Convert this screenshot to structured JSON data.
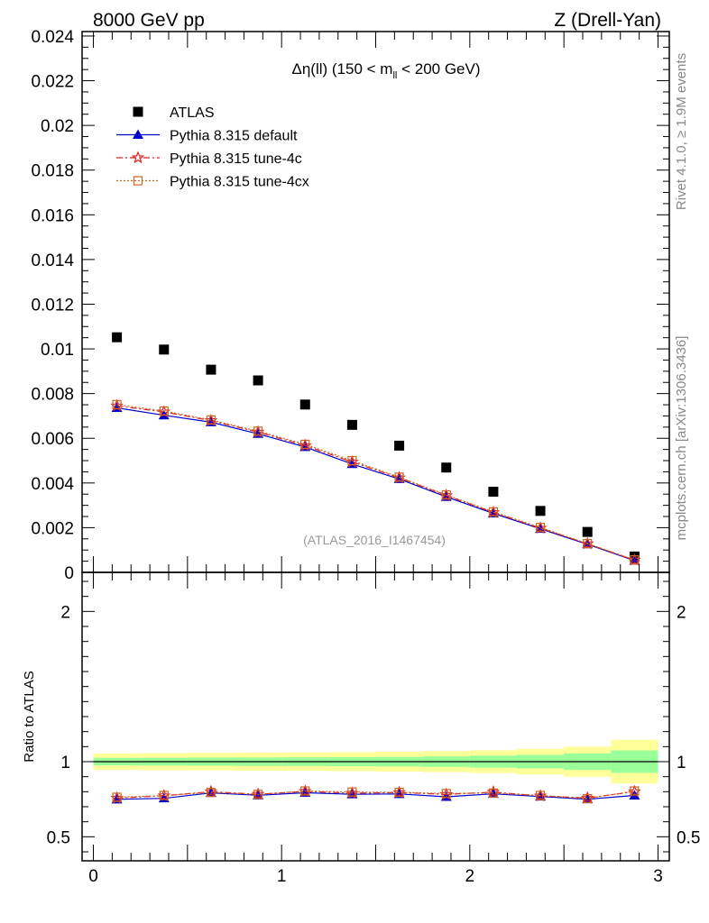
{
  "header": {
    "energy": "8000 GeV pp",
    "process": "Z (Drell-Yan)",
    "plot_title_prefix": "Δη(ll) (150 < m",
    "plot_title_sub": "ll",
    "plot_title_suffix": " < 200 GeV)",
    "analysis_id": "(ATLAS_2016_I1467454)",
    "side_label_top": "Rivet 4.1.0, ≥ 1.9M events",
    "side_label_bottom": "mcplots.cern.ch [arXiv:1306.3436]"
  },
  "chart_data": [
    {
      "type": "scatter",
      "panel": "main",
      "title": "Δη(ll) (150 < m_ll < 200 GeV)",
      "xlim": [
        -0.06,
        3.06
      ],
      "ylim": [
        0,
        0.0242
      ],
      "yticks": [
        0.002,
        0.004,
        0.006,
        0.008,
        0.01,
        0.012,
        0.014,
        0.016,
        0.018,
        0.02,
        0.022,
        0.024
      ],
      "ytick_labels": [
        "0.002",
        "0.004",
        "0.006",
        "0.008",
        "0.01",
        "0.012",
        "0.014",
        "0.016",
        "0.018",
        "0.02",
        "0.022",
        "0.024"
      ],
      "y_zero_label": "0",
      "legend_position": "top-left",
      "x": [
        0.125,
        0.375,
        0.625,
        0.875,
        1.125,
        1.375,
        1.625,
        1.875,
        2.125,
        2.375,
        2.625,
        2.875
      ],
      "series": [
        {
          "name": "ATLAS",
          "color": "#000000",
          "marker": "square",
          "values": [
            0.01052,
            0.00997,
            0.00907,
            0.00859,
            0.00751,
            0.0066,
            0.00567,
            0.00469,
            0.00361,
            0.00275,
            0.00181,
            0.00071
          ]
        },
        {
          "name": "Pythia 8.315 default",
          "color": "#0000cc",
          "marker": "triangle",
          "line": "solid",
          "values": [
            0.00736,
            0.00703,
            0.00672,
            0.0062,
            0.00561,
            0.00485,
            0.00418,
            0.00338,
            0.00264,
            0.00195,
            0.00126,
            0.00053
          ]
        },
        {
          "name": "Pythia 8.315 tune-4c",
          "color": "#dd2222",
          "marker": "star",
          "line": "dashdot",
          "values": [
            0.00745,
            0.00718,
            0.00679,
            0.00628,
            0.00567,
            0.00494,
            0.00423,
            0.00344,
            0.00268,
            0.00198,
            0.00128,
            0.00055
          ]
        },
        {
          "name": "Pythia 8.315 tune-4cx",
          "color": "#cc6622",
          "marker": "open-square",
          "line": "dotted",
          "values": [
            0.00751,
            0.00722,
            0.00682,
            0.00632,
            0.00573,
            0.005,
            0.00426,
            0.00347,
            0.00271,
            0.00201,
            0.00129,
            0.00056
          ]
        }
      ]
    },
    {
      "type": "line",
      "panel": "ratio",
      "ylabel": "Ratio to ATLAS",
      "xlim": [
        -0.06,
        3.06
      ],
      "ylim": [
        0.34,
        2.26
      ],
      "yticks": [
        0.5,
        1,
        2
      ],
      "ytick_labels": [
        "0.5",
        "1",
        "2"
      ],
      "xticks": [
        0,
        1,
        2,
        3
      ],
      "xtick_labels": [
        "0",
        "1",
        "2",
        "3"
      ],
      "x_edges": [
        0,
        0.25,
        0.5,
        0.75,
        1,
        1.25,
        1.5,
        1.75,
        2,
        2.25,
        2.5,
        2.75,
        3
      ],
      "band_outer": [
        0.055,
        0.057,
        0.058,
        0.06,
        0.061,
        0.063,
        0.066,
        0.07,
        0.076,
        0.085,
        0.1,
        0.145
      ],
      "band_inner": [
        0.025,
        0.026,
        0.027,
        0.028,
        0.029,
        0.03,
        0.032,
        0.035,
        0.04,
        0.045,
        0.055,
        0.075
      ],
      "band_outer_color": "#ffff99",
      "band_inner_color": "#99ff99",
      "x": [
        0.125,
        0.375,
        0.625,
        0.875,
        1.125,
        1.375,
        1.625,
        1.875,
        2.125,
        2.375,
        2.625,
        2.875
      ],
      "series": [
        {
          "name": "Pythia 8.315 default",
          "color": "#0000cc",
          "values": [
            0.749,
            0.756,
            0.792,
            0.776,
            0.793,
            0.783,
            0.785,
            0.766,
            0.786,
            0.768,
            0.75,
            0.775
          ]
        },
        {
          "name": "Pythia 8.315 tune-4c",
          "color": "#dd2222",
          "values": [
            0.757,
            0.773,
            0.8,
            0.783,
            0.802,
            0.79,
            0.794,
            0.782,
            0.797,
            0.772,
            0.758,
            0.8
          ]
        },
        {
          "name": "Pythia 8.315 tune-4cx",
          "color": "#cc6622",
          "values": [
            0.763,
            0.775,
            0.795,
            0.782,
            0.805,
            0.798,
            0.796,
            0.788,
            0.791,
            0.775,
            0.754,
            0.805
          ]
        }
      ]
    }
  ]
}
